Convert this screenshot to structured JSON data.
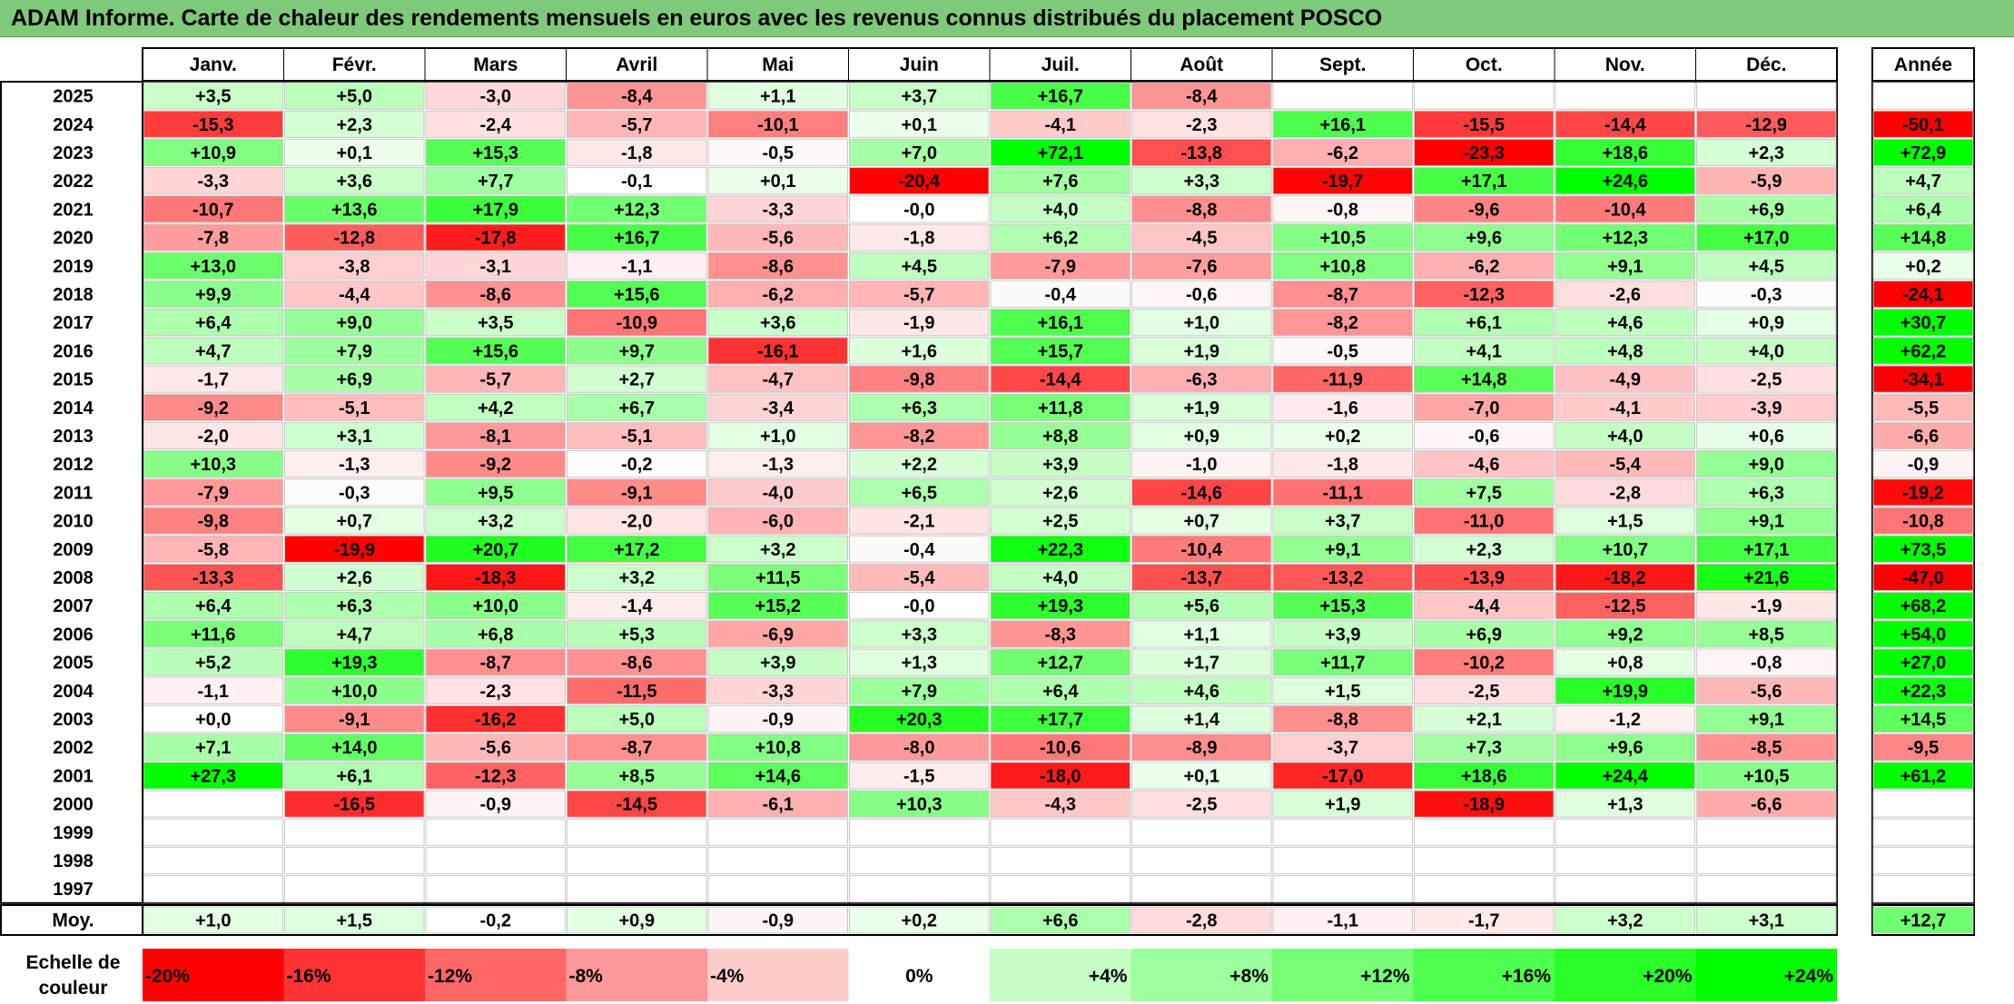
{
  "title": "ADAM Informe. Carte de chaleur des rendements mensuels en euros avec les revenus connus distribués du placement POSCO",
  "colors": {
    "title_background": "#7fc97a",
    "negative_max": "#ff0000",
    "neutral": "#ffffff",
    "positive_max": "#00ff00"
  },
  "chart_data": {
    "type": "heatmap",
    "months": [
      "Janv.",
      "Févr.",
      "Mars",
      "Avril",
      "Mai",
      "Juin",
      "Juil.",
      "Août",
      "Sept.",
      "Oct.",
      "Nov.",
      "Déc."
    ],
    "year_header": "Année",
    "rows": [
      {
        "year": "2025",
        "values": [
          "+3,5",
          "+5,0",
          "-3,0",
          "-8,4",
          "+1,1",
          "+3,7",
          "+16,7",
          "-8,4",
          "",
          "",
          "",
          ""
        ],
        "annual": ""
      },
      {
        "year": "2024",
        "values": [
          "-15,3",
          "+2,3",
          "-2,4",
          "-5,7",
          "-10,1",
          "+0,1",
          "-4,1",
          "-2,3",
          "+16,1",
          "-15,5",
          "-14,4",
          "-12,9"
        ],
        "annual": "-50,1"
      },
      {
        "year": "2023",
        "values": [
          "+10,9",
          "+0,1",
          "+15,3",
          "-1,8",
          "-0,5",
          "+7,0",
          "+72,1",
          "-13,8",
          "-6,2",
          "-23,3",
          "+18,6",
          "+2,3"
        ],
        "annual": "+72,9"
      },
      {
        "year": "2022",
        "values": [
          "-3,3",
          "+3,6",
          "+7,7",
          "-0,1",
          "+0,1",
          "-20,4",
          "+7,6",
          "+3,3",
          "-19,7",
          "+17,1",
          "+24,6",
          "-5,9"
        ],
        "annual": "+4,7"
      },
      {
        "year": "2021",
        "values": [
          "-10,7",
          "+13,6",
          "+17,9",
          "+12,3",
          "-3,3",
          "-0,0",
          "+4,0",
          "-8,8",
          "-0,8",
          "-9,6",
          "-10,4",
          "+6,9"
        ],
        "annual": "+6,4"
      },
      {
        "year": "2020",
        "values": [
          "-7,8",
          "-12,8",
          "-17,8",
          "+16,7",
          "-5,6",
          "-1,8",
          "+6,2",
          "-4,5",
          "+10,5",
          "+9,6",
          "+12,3",
          "+17,0"
        ],
        "annual": "+14,8"
      },
      {
        "year": "2019",
        "values": [
          "+13,0",
          "-3,8",
          "-3,1",
          "-1,1",
          "-8,6",
          "+4,5",
          "-7,9",
          "-7,6",
          "+10,8",
          "-6,2",
          "+9,1",
          "+4,5"
        ],
        "annual": "+0,2"
      },
      {
        "year": "2018",
        "values": [
          "+9,9",
          "-4,4",
          "-8,6",
          "+15,6",
          "-6,2",
          "-5,7",
          "-0,4",
          "-0,6",
          "-8,7",
          "-12,3",
          "-2,6",
          "-0,3"
        ],
        "annual": "-24,1"
      },
      {
        "year": "2017",
        "values": [
          "+6,4",
          "+9,0",
          "+3,5",
          "-10,9",
          "+3,6",
          "-1,9",
          "+16,1",
          "+1,0",
          "-8,2",
          "+6,1",
          "+4,6",
          "+0,9"
        ],
        "annual": "+30,7"
      },
      {
        "year": "2016",
        "values": [
          "+4,7",
          "+7,9",
          "+15,6",
          "+9,7",
          "-16,1",
          "+1,6",
          "+15,7",
          "+1,9",
          "-0,5",
          "+4,1",
          "+4,8",
          "+4,0"
        ],
        "annual": "+62,2"
      },
      {
        "year": "2015",
        "values": [
          "-1,7",
          "+6,9",
          "-5,7",
          "+2,7",
          "-4,7",
          "-9,8",
          "-14,4",
          "-6,3",
          "-11,9",
          "+14,8",
          "-4,9",
          "-2,5"
        ],
        "annual": "-34,1"
      },
      {
        "year": "2014",
        "values": [
          "-9,2",
          "-5,1",
          "+4,2",
          "+6,7",
          "-3,4",
          "+6,3",
          "+11,8",
          "+1,9",
          "-1,6",
          "-7,0",
          "-4,1",
          "-3,9"
        ],
        "annual": "-5,5"
      },
      {
        "year": "2013",
        "values": [
          "-2,0",
          "+3,1",
          "-8,1",
          "-5,1",
          "+1,0",
          "-8,2",
          "+8,8",
          "+0,9",
          "+0,2",
          "-0,6",
          "+4,0",
          "+0,6"
        ],
        "annual": "-6,6"
      },
      {
        "year": "2012",
        "values": [
          "+10,3",
          "-1,3",
          "-9,2",
          "-0,2",
          "-1,3",
          "+2,2",
          "+3,9",
          "-1,0",
          "-1,8",
          "-4,6",
          "-5,4",
          "+9,0"
        ],
        "annual": "-0,9"
      },
      {
        "year": "2011",
        "values": [
          "-7,9",
          "-0,3",
          "+9,5",
          "-9,1",
          "-4,0",
          "+6,5",
          "+2,6",
          "-14,6",
          "-11,1",
          "+7,5",
          "-2,8",
          "+6,3"
        ],
        "annual": "-19,2"
      },
      {
        "year": "2010",
        "values": [
          "-9,8",
          "+0,7",
          "+3,2",
          "-2,0",
          "-6,0",
          "-2,1",
          "+2,5",
          "+0,7",
          "+3,7",
          "-11,0",
          "+1,5",
          "+9,1"
        ],
        "annual": "-10,8"
      },
      {
        "year": "2009",
        "values": [
          "-5,8",
          "-19,9",
          "+20,7",
          "+17,2",
          "+3,2",
          "-0,4",
          "+22,3",
          "-10,4",
          "+9,1",
          "+2,3",
          "+10,7",
          "+17,1"
        ],
        "annual": "+73,5"
      },
      {
        "year": "2008",
        "values": [
          "-13,3",
          "+2,6",
          "-18,3",
          "+3,2",
          "+11,5",
          "-5,4",
          "+4,0",
          "-13,7",
          "-13,2",
          "-13,9",
          "-18,2",
          "+21,6"
        ],
        "annual": "-47,0"
      },
      {
        "year": "2007",
        "values": [
          "+6,4",
          "+6,3",
          "+10,0",
          "-1,4",
          "+15,2",
          "-0,0",
          "+19,3",
          "+5,6",
          "+15,3",
          "-4,4",
          "-12,5",
          "-1,9"
        ],
        "annual": "+68,2"
      },
      {
        "year": "2006",
        "values": [
          "+11,6",
          "+4,7",
          "+6,8",
          "+5,3",
          "-6,9",
          "+3,3",
          "-8,3",
          "+1,1",
          "+3,9",
          "+6,9",
          "+9,2",
          "+8,5"
        ],
        "annual": "+54,0"
      },
      {
        "year": "2005",
        "values": [
          "+5,2",
          "+19,3",
          "-8,7",
          "-8,6",
          "+3,9",
          "+1,3",
          "+12,7",
          "+1,7",
          "+11,7",
          "-10,2",
          "+0,8",
          "-0,8"
        ],
        "annual": "+27,0"
      },
      {
        "year": "2004",
        "values": [
          "-1,1",
          "+10,0",
          "-2,3",
          "-11,5",
          "-3,3",
          "+7,9",
          "+6,4",
          "+4,6",
          "+1,5",
          "-2,5",
          "+19,9",
          "-5,6"
        ],
        "annual": "+22,3"
      },
      {
        "year": "2003",
        "values": [
          "+0,0",
          "-9,1",
          "-16,2",
          "+5,0",
          "-0,9",
          "+20,3",
          "+17,7",
          "+1,4",
          "-8,8",
          "+2,1",
          "-1,2",
          "+9,1"
        ],
        "annual": "+14,5"
      },
      {
        "year": "2002",
        "values": [
          "+7,1",
          "+14,0",
          "-5,6",
          "-8,7",
          "+10,8",
          "-8,0",
          "-10,6",
          "-8,9",
          "-3,7",
          "+7,3",
          "+9,6",
          "-8,5"
        ],
        "annual": "-9,5"
      },
      {
        "year": "2001",
        "values": [
          "+27,3",
          "+6,1",
          "-12,3",
          "+8,5",
          "+14,6",
          "-1,5",
          "-18,0",
          "+0,1",
          "-17,0",
          "+18,6",
          "+24,4",
          "+10,5"
        ],
        "annual": "+61,2"
      },
      {
        "year": "2000",
        "values": [
          "",
          "-16,5",
          "-0,9",
          "-14,5",
          "-6,1",
          "+10,3",
          "-4,3",
          "-2,5",
          "+1,9",
          "-18,9",
          "+1,3",
          "-6,6"
        ],
        "annual": ""
      },
      {
        "year": "1999",
        "values": [
          "",
          "",
          "",
          "",
          "",
          "",
          "",
          "",
          "",
          "",
          "",
          ""
        ],
        "annual": ""
      },
      {
        "year": "1998",
        "values": [
          "",
          "",
          "",
          "",
          "",
          "",
          "",
          "",
          "",
          "",
          "",
          ""
        ],
        "annual": ""
      },
      {
        "year": "1997",
        "values": [
          "",
          "",
          "",
          "",
          "",
          "",
          "",
          "",
          "",
          "",
          "",
          ""
        ],
        "annual": ""
      }
    ],
    "average": {
      "label": "Moy.",
      "values": [
        "+1,0",
        "+1,5",
        "-0,2",
        "+0,9",
        "-0,9",
        "+0,2",
        "+6,6",
        "-2,8",
        "-1,1",
        "-1,7",
        "+3,2",
        "+3,1"
      ],
      "annual": "+12,7"
    },
    "scale": {
      "label_line1": "Echelle de",
      "label_line2": "couleur",
      "steps": [
        {
          "label": "-20%",
          "value": -20
        },
        {
          "label": "-16%",
          "value": -16
        },
        {
          "label": "-12%",
          "value": -12
        },
        {
          "label": "-8%",
          "value": -8
        },
        {
          "label": "-4%",
          "value": -4
        },
        {
          "label": "0%",
          "value": 0
        },
        {
          "label": "+4%",
          "value": 4
        },
        {
          "label": "+8%",
          "value": 8
        },
        {
          "label": "+12%",
          "value": 12
        },
        {
          "label": "+16%",
          "value": 16
        },
        {
          "label": "+20%",
          "value": 20
        },
        {
          "label": "+24%",
          "value": 24
        }
      ]
    }
  }
}
